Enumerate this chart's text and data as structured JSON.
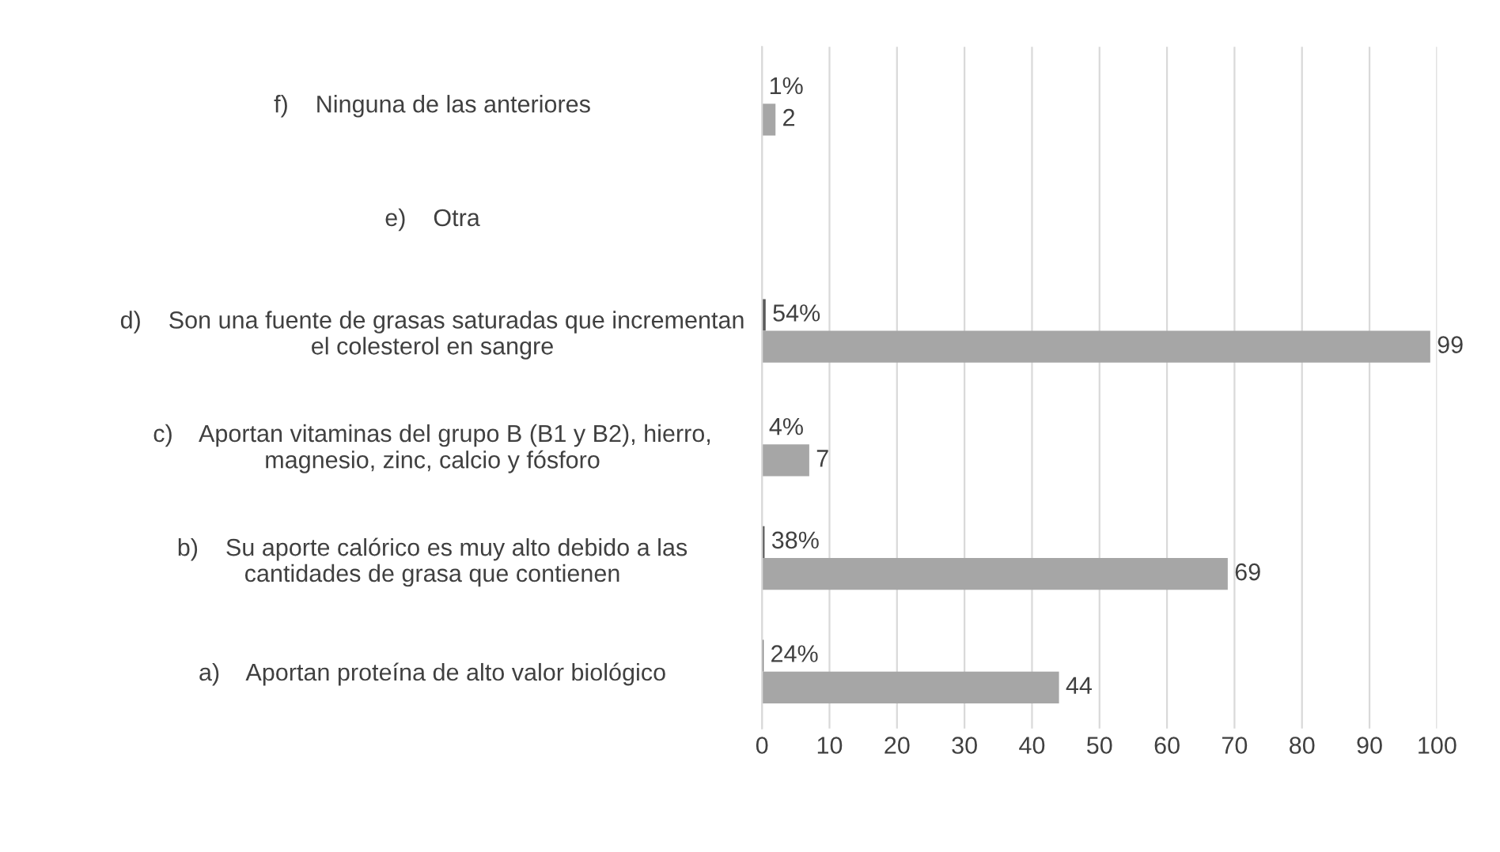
{
  "chart_data": {
    "type": "bar",
    "orientation": "horizontal",
    "categories": [
      "f)    Ninguna de las anteriores",
      "e)    Otra",
      "d)    Son una fuente de grasas saturadas que incrementan\nel colesterol en sangre",
      "c)    Aportan vitaminas del grupo B (B1 y B2), hierro,\nmagnesio, zinc, calcio y fósforo",
      "b)    Su aporte calórico es muy alto debido a las\ncantidades de grasa que contienen",
      "a)    Aportan proteína de alto valor biológico"
    ],
    "series": [
      {
        "color": "#595959",
        "values": [
          0.01,
          null,
          0.54,
          0.04,
          0.38,
          0.24
        ],
        "value_labels": [
          "1%",
          null,
          "54%",
          "4%",
          "38%",
          "24%"
        ]
      },
      {
        "color": "#a6a6a6",
        "values": [
          2,
          null,
          99,
          7,
          69,
          44
        ],
        "value_labels": [
          "2",
          null,
          "99",
          "7",
          "69",
          "44"
        ]
      }
    ],
    "xlim": [
      0,
      100
    ],
    "xticks": [
      0,
      10,
      20,
      30,
      40,
      50,
      60,
      70,
      80,
      90,
      100
    ],
    "grid": "x",
    "legend": false
  }
}
